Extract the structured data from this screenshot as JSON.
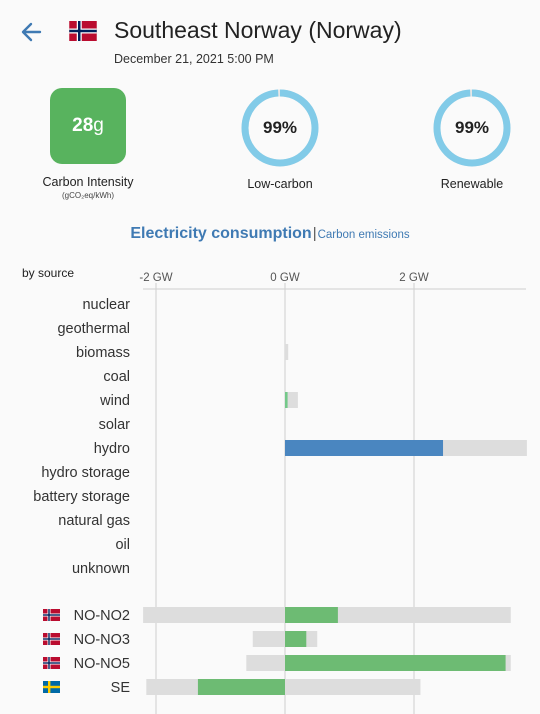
{
  "header": {
    "title": "Southeast Norway (Norway)",
    "datetime": "December 21, 2021 5:00 PM"
  },
  "metrics": {
    "carbon_intensity": {
      "value": "28",
      "unit": "g",
      "label": "Carbon Intensity",
      "sublabel": "(gCO₂eq/kWh)",
      "color": "#58b35e"
    },
    "low_carbon": {
      "value": "99%",
      "label": "Low-carbon",
      "fraction": 0.99
    },
    "renewable": {
      "value": "99%",
      "label": "Renewable",
      "fraction": 0.99
    }
  },
  "tabs": {
    "active": "Electricity consumption",
    "separator": "|",
    "inactive": "Carbon emissions"
  },
  "chart_title": "by source",
  "chart_data": {
    "type": "bar",
    "orientation": "horizontal",
    "unit": "GW",
    "xlim": [
      -2.2,
      3.75
    ],
    "ticks": [
      {
        "value": -2,
        "label": "-2 GW"
      },
      {
        "value": 0,
        "label": "0 GW"
      },
      {
        "value": 2,
        "label": "2 GW"
      }
    ],
    "sources": [
      {
        "name": "nuclear",
        "capacity": 0,
        "value": 0
      },
      {
        "name": "geothermal",
        "capacity": 0,
        "value": 0
      },
      {
        "name": "biomass",
        "capacity": 0.05,
        "value": 0
      },
      {
        "name": "coal",
        "capacity": 0,
        "value": 0
      },
      {
        "name": "wind",
        "capacity": 0.2,
        "value": 0.04
      },
      {
        "name": "solar",
        "capacity": 0,
        "value": 0
      },
      {
        "name": "hydro",
        "capacity": 3.75,
        "value": 2.45
      },
      {
        "name": "hydro storage",
        "capacity": 0,
        "value": 0
      },
      {
        "name": "battery storage",
        "capacity": 0,
        "value": 0
      },
      {
        "name": "natural gas",
        "capacity": 0,
        "value": 0
      },
      {
        "name": "oil",
        "capacity": 0,
        "value": 0
      },
      {
        "name": "unknown",
        "capacity": 0,
        "value": 0
      }
    ],
    "exchanges": [
      {
        "name": "NO-NO2",
        "flag": "norway",
        "capacity_min": -2.2,
        "capacity_max": 3.5,
        "value": 0.82
      },
      {
        "name": "NO-NO3",
        "flag": "norway",
        "capacity_min": -0.5,
        "capacity_max": 0.5,
        "value": 0.33
      },
      {
        "name": "NO-NO5",
        "flag": "norway",
        "capacity_min": -0.6,
        "capacity_max": 3.5,
        "value": 3.42
      },
      {
        "name": "SE",
        "flag": "sweden",
        "capacity_min": -2.15,
        "capacity_max": 2.1,
        "value": -1.35
      }
    ],
    "colors": {
      "hydro": "#4a86c0",
      "wind": "#74c98a",
      "exchange": "#6dbb73",
      "capacity": "#dddddd",
      "grid": "#cfcfcf"
    }
  },
  "colors": {
    "accent": "#3f7ab3",
    "ring": "#82cbe8"
  }
}
